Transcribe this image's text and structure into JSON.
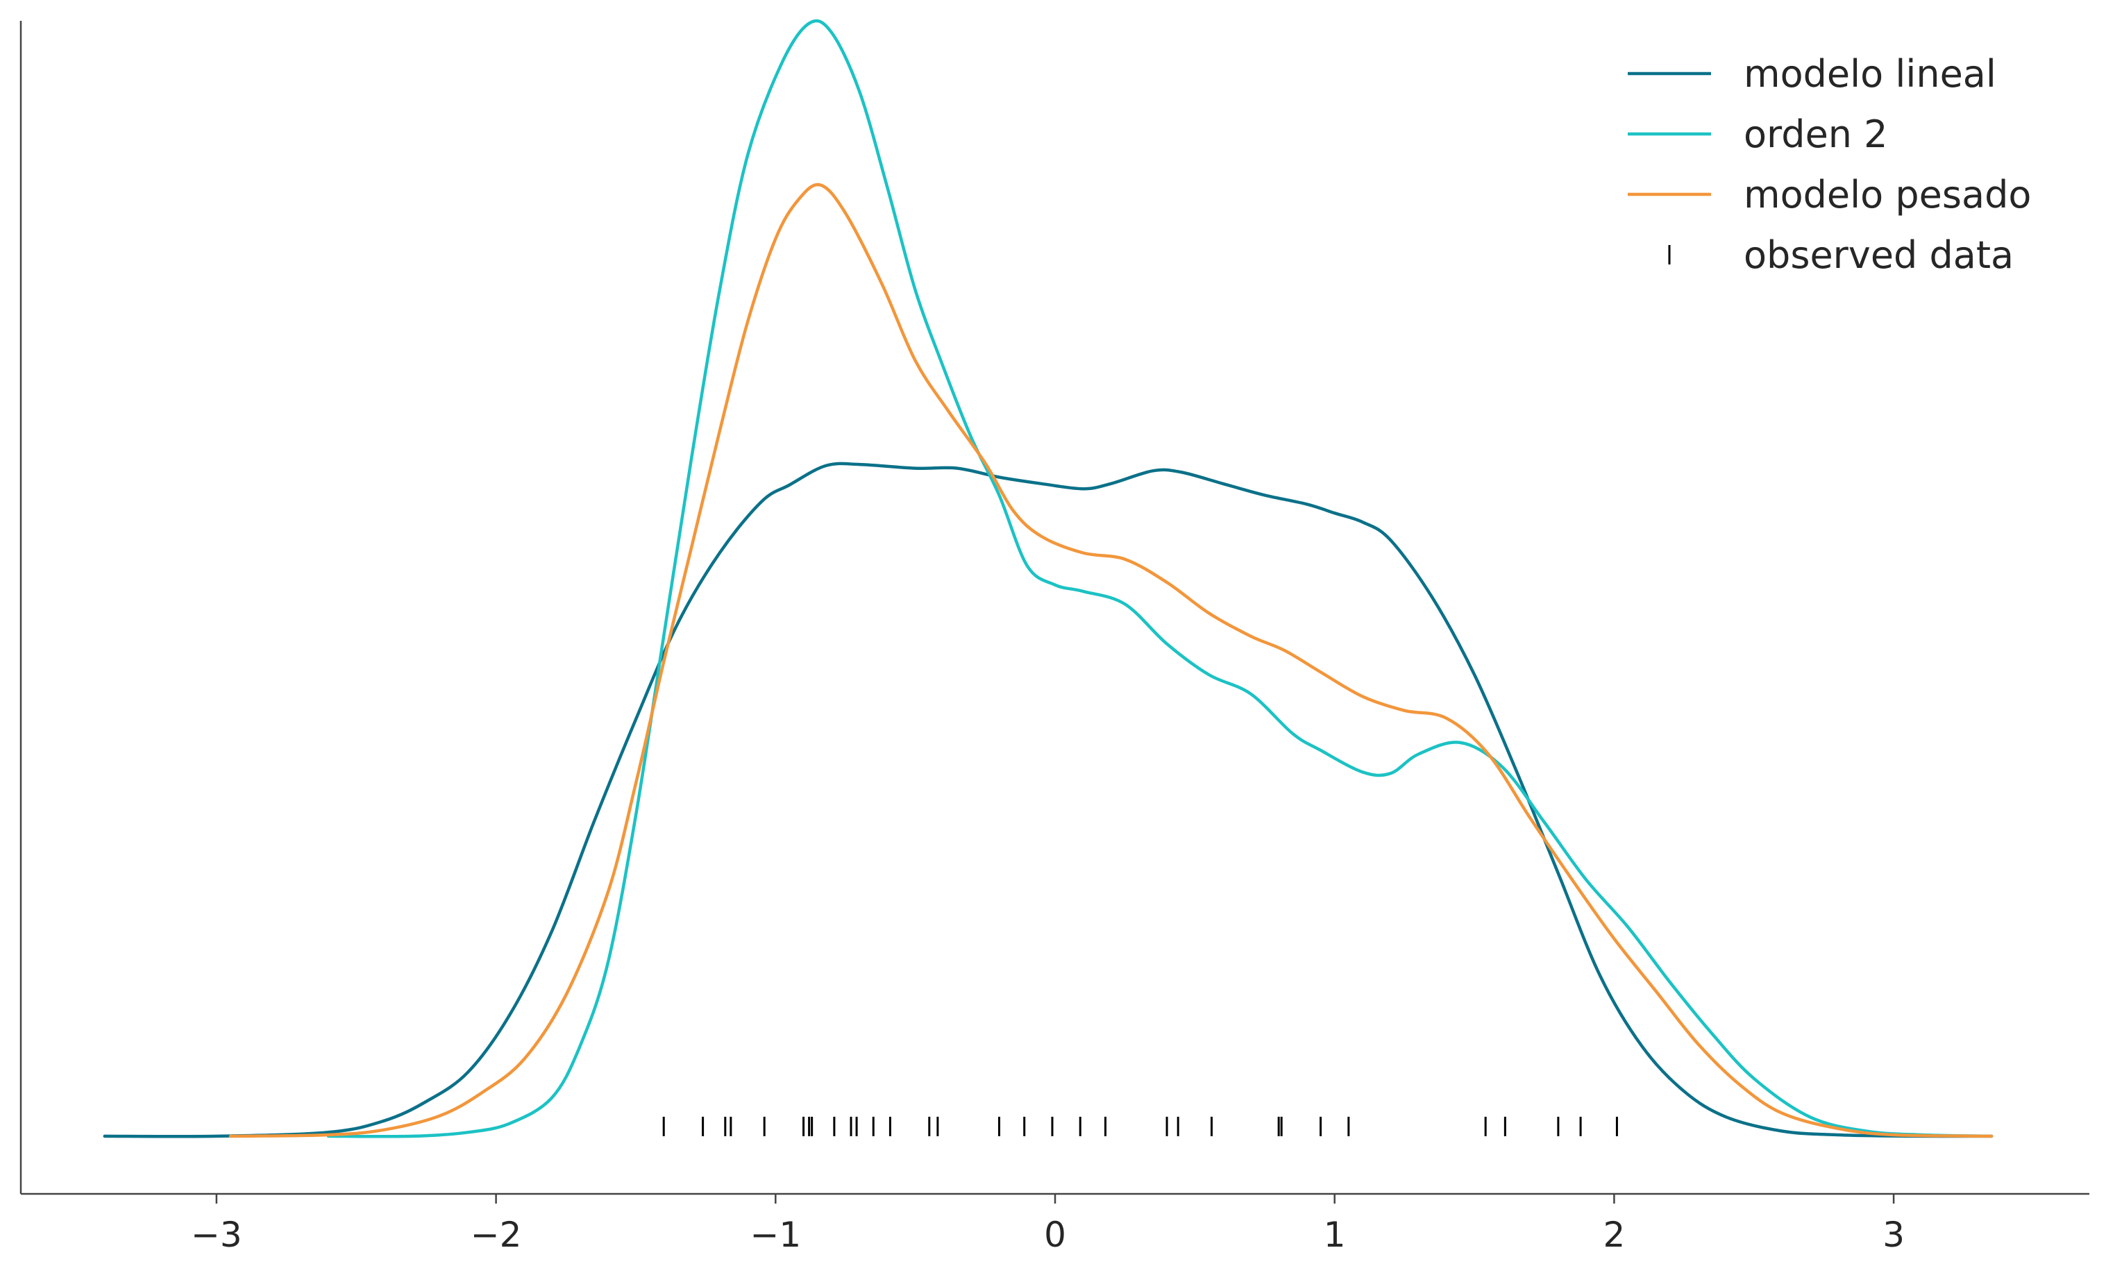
{
  "chart_data": {
    "type": "line",
    "title": "",
    "xlabel": "",
    "ylabel": "",
    "xlim": [
      -3.7,
      3.7
    ],
    "ylim": [
      -0.045,
      0.87
    ],
    "grid": false,
    "legend_position": "top-right",
    "x_ticks": [
      -3,
      -2,
      -1,
      0,
      1,
      2,
      3
    ],
    "x_tick_labels": [
      "−3",
      "−2",
      "−1",
      "0",
      "1",
      "2",
      "3"
    ],
    "series": [
      {
        "name": "modelo lineal",
        "color": "#0b7189",
        "points": [
          [
            -3.4,
            0.0
          ],
          [
            -3.0,
            0.0
          ],
          [
            -2.6,
            0.003
          ],
          [
            -2.4,
            0.012
          ],
          [
            -2.25,
            0.027
          ],
          [
            -2.1,
            0.05
          ],
          [
            -1.95,
            0.095
          ],
          [
            -1.8,
            0.16
          ],
          [
            -1.65,
            0.245
          ],
          [
            -1.5,
            0.325
          ],
          [
            -1.35,
            0.4
          ],
          [
            -1.2,
            0.455
          ],
          [
            -1.05,
            0.495
          ],
          [
            -0.95,
            0.508
          ],
          [
            -0.82,
            0.523
          ],
          [
            -0.7,
            0.524
          ],
          [
            -0.5,
            0.521
          ],
          [
            -0.35,
            0.521
          ],
          [
            -0.2,
            0.514
          ],
          [
            -0.05,
            0.509
          ],
          [
            0.1,
            0.505
          ],
          [
            0.2,
            0.509
          ],
          [
            0.35,
            0.519
          ],
          [
            0.45,
            0.518
          ],
          [
            0.6,
            0.509
          ],
          [
            0.75,
            0.5
          ],
          [
            0.9,
            0.493
          ],
          [
            1.0,
            0.486
          ],
          [
            1.1,
            0.479
          ],
          [
            1.2,
            0.465
          ],
          [
            1.35,
            0.42
          ],
          [
            1.5,
            0.36
          ],
          [
            1.65,
            0.285
          ],
          [
            1.8,
            0.205
          ],
          [
            1.95,
            0.125
          ],
          [
            2.1,
            0.07
          ],
          [
            2.25,
            0.035
          ],
          [
            2.4,
            0.015
          ],
          [
            2.6,
            0.004
          ],
          [
            2.8,
            0.001
          ],
          [
            3.1,
            0.0
          ],
          [
            3.35,
            0.0
          ]
        ]
      },
      {
        "name": "orden 2",
        "color": "#1cc2c4",
        "points": [
          [
            -2.6,
            0.0
          ],
          [
            -2.3,
            0.0
          ],
          [
            -2.1,
            0.003
          ],
          [
            -1.95,
            0.01
          ],
          [
            -1.8,
            0.03
          ],
          [
            -1.7,
            0.07
          ],
          [
            -1.6,
            0.135
          ],
          [
            -1.5,
            0.25
          ],
          [
            -1.4,
            0.39
          ],
          [
            -1.3,
            0.53
          ],
          [
            -1.2,
            0.66
          ],
          [
            -1.1,
            0.765
          ],
          [
            -0.98,
            0.836
          ],
          [
            -0.88,
            0.868
          ],
          [
            -0.8,
            0.861
          ],
          [
            -0.7,
            0.815
          ],
          [
            -0.6,
            0.74
          ],
          [
            -0.5,
            0.66
          ],
          [
            -0.4,
            0.6
          ],
          [
            -0.3,
            0.545
          ],
          [
            -0.2,
            0.5
          ],
          [
            -0.1,
            0.445
          ],
          [
            0.0,
            0.43
          ],
          [
            0.1,
            0.425
          ],
          [
            0.25,
            0.415
          ],
          [
            0.4,
            0.384
          ],
          [
            0.55,
            0.36
          ],
          [
            0.7,
            0.345
          ],
          [
            0.85,
            0.314
          ],
          [
            0.95,
            0.301
          ],
          [
            1.1,
            0.284
          ],
          [
            1.2,
            0.283
          ],
          [
            1.3,
            0.298
          ],
          [
            1.45,
            0.307
          ],
          [
            1.6,
            0.288
          ],
          [
            1.75,
            0.245
          ],
          [
            1.9,
            0.2
          ],
          [
            2.05,
            0.163
          ],
          [
            2.2,
            0.12
          ],
          [
            2.35,
            0.08
          ],
          [
            2.5,
            0.045
          ],
          [
            2.7,
            0.015
          ],
          [
            2.9,
            0.004
          ],
          [
            3.1,
            0.001
          ],
          [
            3.35,
            0.0
          ]
        ]
      },
      {
        "name": "modelo pesado",
        "color": "#f2963b",
        "points": [
          [
            -2.95,
            0.0
          ],
          [
            -2.6,
            0.001
          ],
          [
            -2.4,
            0.005
          ],
          [
            -2.2,
            0.016
          ],
          [
            -2.05,
            0.034
          ],
          [
            -1.9,
            0.06
          ],
          [
            -1.75,
            0.11
          ],
          [
            -1.6,
            0.19
          ],
          [
            -1.5,
            0.275
          ],
          [
            -1.4,
            0.37
          ],
          [
            -1.3,
            0.46
          ],
          [
            -1.2,
            0.55
          ],
          [
            -1.1,
            0.635
          ],
          [
            -1.0,
            0.7
          ],
          [
            -0.92,
            0.73
          ],
          [
            -0.84,
            0.742
          ],
          [
            -0.75,
            0.72
          ],
          [
            -0.62,
            0.665
          ],
          [
            -0.5,
            0.605
          ],
          [
            -0.38,
            0.565
          ],
          [
            -0.25,
            0.525
          ],
          [
            -0.15,
            0.488
          ],
          [
            -0.05,
            0.468
          ],
          [
            0.1,
            0.455
          ],
          [
            0.25,
            0.45
          ],
          [
            0.4,
            0.432
          ],
          [
            0.55,
            0.408
          ],
          [
            0.7,
            0.39
          ],
          [
            0.82,
            0.379
          ],
          [
            0.95,
            0.362
          ],
          [
            1.1,
            0.343
          ],
          [
            1.25,
            0.332
          ],
          [
            1.4,
            0.326
          ],
          [
            1.55,
            0.298
          ],
          [
            1.7,
            0.248
          ],
          [
            1.85,
            0.2
          ],
          [
            2.0,
            0.154
          ],
          [
            2.15,
            0.113
          ],
          [
            2.3,
            0.072
          ],
          [
            2.45,
            0.04
          ],
          [
            2.6,
            0.018
          ],
          [
            2.8,
            0.006
          ],
          [
            3.0,
            0.001
          ],
          [
            3.35,
            0.0
          ]
        ]
      }
    ],
    "observed_data": {
      "name": "observed data",
      "color": "#000000",
      "values": [
        -1.4,
        -1.26,
        -1.18,
        -1.16,
        -1.04,
        -0.9,
        -0.88,
        -0.87,
        -0.79,
        -0.73,
        -0.71,
        -0.65,
        -0.59,
        -0.45,
        -0.42,
        -0.2,
        -0.11,
        -0.01,
        0.09,
        0.18,
        0.4,
        0.44,
        0.56,
        0.8,
        0.81,
        0.95,
        1.05,
        1.54,
        1.61,
        1.8,
        1.88,
        2.01
      ]
    }
  }
}
